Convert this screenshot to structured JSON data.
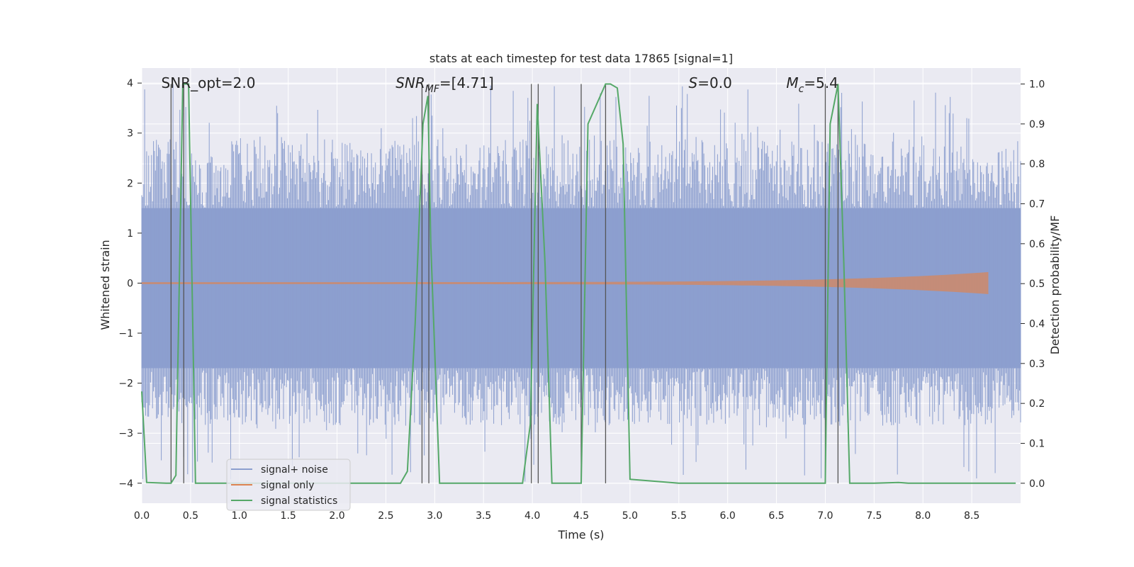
{
  "chart_data": {
    "type": "line",
    "title": "stats at each timestep for test data 17865 [signal=1]",
    "xlabel": "Time (s)",
    "ylabel": "Whitened strain",
    "y2label": "Detection probability/MF",
    "xlim": [
      0.0,
      9.0
    ],
    "ylim": [
      -4.4,
      4.3
    ],
    "y2lim": [
      -0.05,
      1.04
    ],
    "x_ticks": [
      "0.0",
      "0.5",
      "1.0",
      "1.5",
      "2.0",
      "2.5",
      "3.0",
      "3.5",
      "4.0",
      "4.5",
      "5.0",
      "5.5",
      "6.0",
      "6.5",
      "7.0",
      "7.5",
      "8.0",
      "8.5"
    ],
    "y_ticks": [
      "4",
      "3",
      "2",
      "1",
      "0",
      "−1",
      "−2",
      "−3",
      "−4"
    ],
    "y2_ticks": [
      "1.0",
      "0.9",
      "0.8",
      "0.7",
      "0.6",
      "0.5",
      "0.4",
      "0.3",
      "0.2",
      "0.1",
      "0.0"
    ],
    "annotations": [
      {
        "name": "snr-opt-annotation",
        "text": "SNR_opt=2.0",
        "x": 0.2,
        "y": 3.9,
        "italic": false
      },
      {
        "name": "snr-mf-annotation",
        "text": "SNR_MF=[4.71]",
        "x": 2.6,
        "y": 3.9,
        "italic": true
      },
      {
        "name": "s-annotation",
        "text": "S=0.0",
        "x": 5.6,
        "y": 3.9,
        "italic": true
      },
      {
        "name": "mc-annotation",
        "text": "M_c=5.4",
        "x": 6.6,
        "y": 3.9,
        "italic": true
      }
    ],
    "legend": {
      "position": "lower-left",
      "entries": [
        {
          "label": "signal+ noise",
          "color": "#8c9fcf"
        },
        {
          "label": "signal only",
          "color": "#dd8452"
        },
        {
          "label": "signal statistics",
          "color": "#55a868"
        }
      ]
    },
    "series": [
      {
        "name": "signal+ noise",
        "kind": "noise",
        "color": "#8c9fcf",
        "x_range": [
          0.0,
          9.0
        ],
        "envelope": [
          -1.7,
          1.5
        ],
        "peak_max": 4.0,
        "peak_min": -4.0
      },
      {
        "name": "signal only",
        "kind": "chirp",
        "color": "#dd8452",
        "x_range": [
          0.0,
          8.67
        ],
        "end_amplitude": 0.2
      },
      {
        "name": "signal statistics",
        "kind": "line",
        "axis": "right",
        "color": "#55a868",
        "x": [
          0.0,
          0.05,
          0.25,
          0.3,
          0.35,
          0.42,
          0.48,
          0.55,
          1.0,
          1.5,
          2.0,
          2.5,
          2.65,
          2.72,
          2.8,
          2.88,
          2.93,
          2.96,
          3.05,
          3.5,
          3.9,
          3.98,
          4.05,
          4.13,
          4.2,
          4.35,
          4.5,
          4.57,
          4.75,
          4.8,
          4.87,
          4.93,
          5.0,
          5.5,
          6.0,
          6.5,
          7.0,
          7.05,
          7.13,
          7.19,
          7.25,
          7.5,
          7.75,
          7.85,
          8.0,
          8.5,
          8.95
        ],
        "y": [
          0.23,
          0.002,
          0.0,
          0.0,
          0.02,
          1.0,
          1.0,
          0.0,
          0.0,
          0.0,
          0.0,
          0.0,
          0.0,
          0.03,
          0.4,
          0.9,
          0.97,
          0.6,
          0.0,
          0.0,
          0.0,
          0.15,
          0.95,
          0.55,
          0.0,
          0.0,
          0.0,
          0.9,
          1.0,
          1.0,
          0.99,
          0.85,
          0.01,
          0.0,
          0.0,
          0.0,
          0.0,
          0.9,
          1.0,
          0.55,
          0.0,
          0.0,
          0.002,
          0.0,
          0.0,
          0.0,
          0.0
        ]
      }
    ],
    "vertical_markers": [
      0.3,
      0.43,
      2.87,
      2.94,
      3.99,
      4.06,
      4.5,
      4.75,
      7.0,
      7.13
    ]
  }
}
